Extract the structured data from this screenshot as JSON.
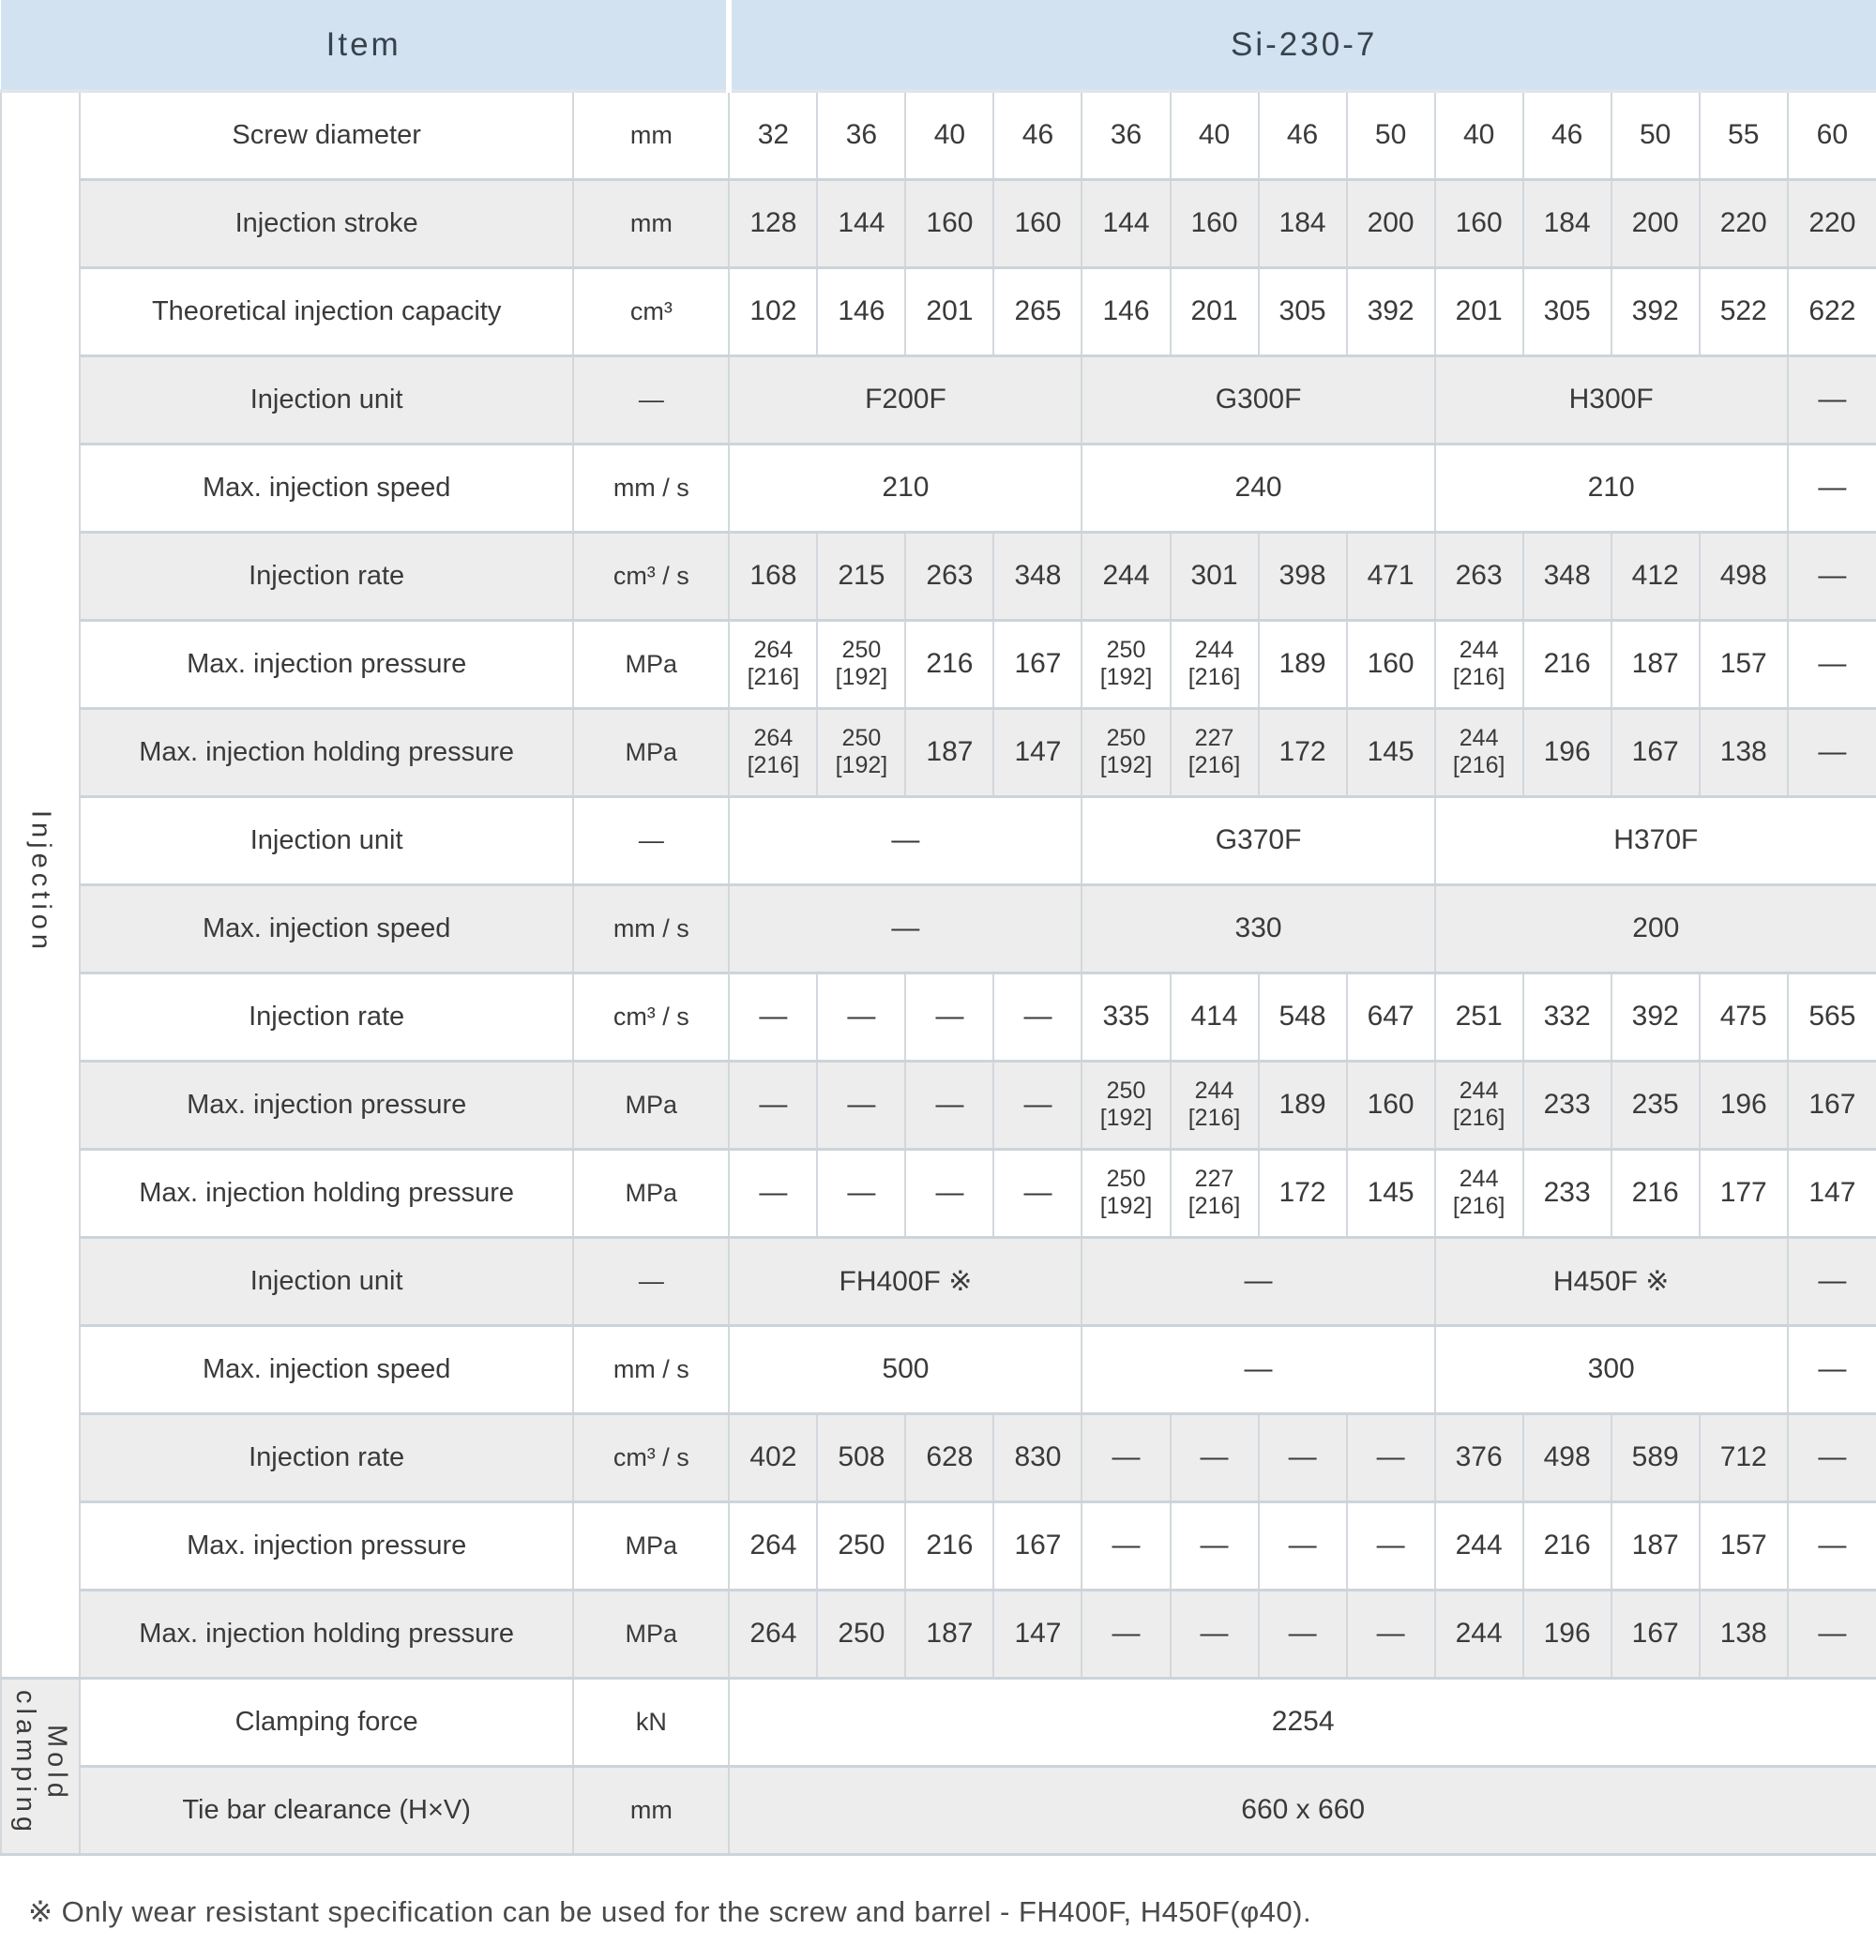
{
  "header": {
    "item_label": "Item",
    "model_label": "Si-230-7"
  },
  "groups": {
    "injection": "Injection",
    "mold_clamping": "Mold clamping"
  },
  "columns": 13,
  "rows": [
    {
      "label": "Screw diameter",
      "unit": "mm",
      "cells": [
        {
          "v": "32"
        },
        {
          "v": "36"
        },
        {
          "v": "40"
        },
        {
          "v": "46"
        },
        {
          "v": "36"
        },
        {
          "v": "40"
        },
        {
          "v": "46"
        },
        {
          "v": "50"
        },
        {
          "v": "40"
        },
        {
          "v": "46"
        },
        {
          "v": "50"
        },
        {
          "v": "55"
        },
        {
          "v": "60"
        }
      ]
    },
    {
      "label": "Injection stroke",
      "unit": "mm",
      "cells": [
        {
          "v": "128"
        },
        {
          "v": "144"
        },
        {
          "v": "160"
        },
        {
          "v": "160"
        },
        {
          "v": "144"
        },
        {
          "v": "160"
        },
        {
          "v": "184"
        },
        {
          "v": "200"
        },
        {
          "v": "160"
        },
        {
          "v": "184"
        },
        {
          "v": "200"
        },
        {
          "v": "220"
        },
        {
          "v": "220"
        }
      ]
    },
    {
      "label": "Theoretical injection capacity",
      "unit": "cm³",
      "cells": [
        {
          "v": "102"
        },
        {
          "v": "146"
        },
        {
          "v": "201"
        },
        {
          "v": "265"
        },
        {
          "v": "146"
        },
        {
          "v": "201"
        },
        {
          "v": "305"
        },
        {
          "v": "392"
        },
        {
          "v": "201"
        },
        {
          "v": "305"
        },
        {
          "v": "392"
        },
        {
          "v": "522"
        },
        {
          "v": "622"
        }
      ]
    },
    {
      "label": "Injection unit",
      "unit": "—",
      "cells": [
        {
          "v": "F200F",
          "span": 4
        },
        {
          "v": "G300F",
          "span": 4
        },
        {
          "v": "H300F",
          "span": 4
        },
        {
          "v": "—"
        }
      ]
    },
    {
      "label": "Max. injection speed",
      "unit": "mm / s",
      "cells": [
        {
          "v": "210",
          "span": 4
        },
        {
          "v": "240",
          "span": 4
        },
        {
          "v": "210",
          "span": 4
        },
        {
          "v": "—"
        }
      ]
    },
    {
      "label": "Injection rate",
      "unit": "cm³ / s",
      "cells": [
        {
          "v": "168"
        },
        {
          "v": "215"
        },
        {
          "v": "263"
        },
        {
          "v": "348"
        },
        {
          "v": "244"
        },
        {
          "v": "301"
        },
        {
          "v": "398"
        },
        {
          "v": "471"
        },
        {
          "v": "263"
        },
        {
          "v": "348"
        },
        {
          "v": "412"
        },
        {
          "v": "498"
        },
        {
          "v": "—"
        }
      ]
    },
    {
      "label": "Max. injection pressure",
      "unit": "MPa",
      "cells": [
        {
          "v": "264",
          "sub": "[216]"
        },
        {
          "v": "250",
          "sub": "[192]"
        },
        {
          "v": "216"
        },
        {
          "v": "167"
        },
        {
          "v": "250",
          "sub": "[192]"
        },
        {
          "v": "244",
          "sub": "[216]"
        },
        {
          "v": "189"
        },
        {
          "v": "160"
        },
        {
          "v": "244",
          "sub": "[216]"
        },
        {
          "v": "216"
        },
        {
          "v": "187"
        },
        {
          "v": "157"
        },
        {
          "v": "—"
        }
      ]
    },
    {
      "label": "Max. injection holding pressure",
      "unit": "MPa",
      "cells": [
        {
          "v": "264",
          "sub": "[216]"
        },
        {
          "v": "250",
          "sub": "[192]"
        },
        {
          "v": "187"
        },
        {
          "v": "147"
        },
        {
          "v": "250",
          "sub": "[192]"
        },
        {
          "v": "227",
          "sub": "[216]"
        },
        {
          "v": "172"
        },
        {
          "v": "145"
        },
        {
          "v": "244",
          "sub": "[216]"
        },
        {
          "v": "196"
        },
        {
          "v": "167"
        },
        {
          "v": "138"
        },
        {
          "v": "—"
        }
      ]
    },
    {
      "label": "Injection unit",
      "unit": "—",
      "cells": [
        {
          "v": "—",
          "span": 4
        },
        {
          "v": "G370F",
          "span": 4
        },
        {
          "v": "H370F",
          "span": 5
        }
      ]
    },
    {
      "label": "Max. injection speed",
      "unit": "mm / s",
      "cells": [
        {
          "v": "—",
          "span": 4
        },
        {
          "v": "330",
          "span": 4
        },
        {
          "v": "200",
          "span": 5
        }
      ]
    },
    {
      "label": "Injection rate",
      "unit": "cm³ / s",
      "cells": [
        {
          "v": "—"
        },
        {
          "v": "—"
        },
        {
          "v": "—"
        },
        {
          "v": "—"
        },
        {
          "v": "335"
        },
        {
          "v": "414"
        },
        {
          "v": "548"
        },
        {
          "v": "647"
        },
        {
          "v": "251"
        },
        {
          "v": "332"
        },
        {
          "v": "392"
        },
        {
          "v": "475"
        },
        {
          "v": "565"
        }
      ]
    },
    {
      "label": "Max. injection pressure",
      "unit": "MPa",
      "cells": [
        {
          "v": "—"
        },
        {
          "v": "—"
        },
        {
          "v": "—"
        },
        {
          "v": "—"
        },
        {
          "v": "250",
          "sub": "[192]"
        },
        {
          "v": "244",
          "sub": "[216]"
        },
        {
          "v": "189"
        },
        {
          "v": "160"
        },
        {
          "v": "244",
          "sub": "[216]"
        },
        {
          "v": "233"
        },
        {
          "v": "235"
        },
        {
          "v": "196"
        },
        {
          "v": "167"
        }
      ]
    },
    {
      "label": "Max. injection holding pressure",
      "unit": "MPa",
      "cells": [
        {
          "v": "—"
        },
        {
          "v": "—"
        },
        {
          "v": "—"
        },
        {
          "v": "—"
        },
        {
          "v": "250",
          "sub": "[192]"
        },
        {
          "v": "227",
          "sub": "[216]"
        },
        {
          "v": "172"
        },
        {
          "v": "145"
        },
        {
          "v": "244",
          "sub": "[216]"
        },
        {
          "v": "233"
        },
        {
          "v": "216"
        },
        {
          "v": "177"
        },
        {
          "v": "147"
        }
      ]
    },
    {
      "label": "Injection unit",
      "unit": "—",
      "cells": [
        {
          "v": "FH400F  ※",
          "span": 4
        },
        {
          "v": "—",
          "span": 4
        },
        {
          "v": "H450F  ※",
          "span": 4
        },
        {
          "v": "—"
        }
      ]
    },
    {
      "label": "Max. injection speed",
      "unit": "mm / s",
      "cells": [
        {
          "v": "500",
          "span": 4
        },
        {
          "v": "—",
          "span": 4
        },
        {
          "v": "300",
          "span": 4
        },
        {
          "v": "—"
        }
      ]
    },
    {
      "label": "Injection rate",
      "unit": "cm³ / s",
      "cells": [
        {
          "v": "402"
        },
        {
          "v": "508"
        },
        {
          "v": "628"
        },
        {
          "v": "830"
        },
        {
          "v": "—"
        },
        {
          "v": "—"
        },
        {
          "v": "—"
        },
        {
          "v": "—"
        },
        {
          "v": "376"
        },
        {
          "v": "498"
        },
        {
          "v": "589"
        },
        {
          "v": "712"
        },
        {
          "v": "—"
        }
      ]
    },
    {
      "label": "Max. injection pressure",
      "unit": "MPa",
      "cells": [
        {
          "v": "264"
        },
        {
          "v": "250"
        },
        {
          "v": "216"
        },
        {
          "v": "167"
        },
        {
          "v": "—"
        },
        {
          "v": "—"
        },
        {
          "v": "—"
        },
        {
          "v": "—"
        },
        {
          "v": "244"
        },
        {
          "v": "216"
        },
        {
          "v": "187"
        },
        {
          "v": "157"
        },
        {
          "v": "—"
        }
      ]
    },
    {
      "label": "Max. injection holding pressure",
      "unit": "MPa",
      "cells": [
        {
          "v": "264"
        },
        {
          "v": "250"
        },
        {
          "v": "187"
        },
        {
          "v": "147"
        },
        {
          "v": "—"
        },
        {
          "v": "—"
        },
        {
          "v": "—"
        },
        {
          "v": "—"
        },
        {
          "v": "244"
        },
        {
          "v": "196"
        },
        {
          "v": "167"
        },
        {
          "v": "138"
        },
        {
          "v": "—"
        }
      ]
    },
    {
      "label": "Clamping force",
      "unit": "kN",
      "cells": [
        {
          "v": "2254",
          "span": 13
        }
      ]
    },
    {
      "label": "Tie bar clearance (H×V)",
      "unit": "mm",
      "cells": [
        {
          "v": "660 x 660",
          "span": 13
        }
      ]
    }
  ],
  "colors": {
    "header_bg": "#d2e2f0",
    "row_alt_bg": "#ededed",
    "grid_line": "#ccd4db"
  },
  "footnote": "※ Only wear resistant specification can be used for the screw and barrel - FH400F, H450F(φ40)."
}
